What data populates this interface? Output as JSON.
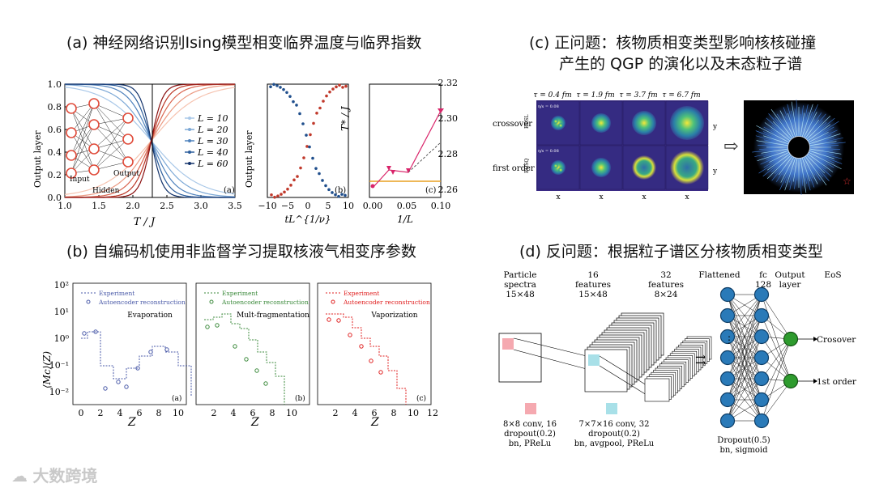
{
  "captions": {
    "a": "(a) 神经网络识别Ising模型相变临界温度与临界指数",
    "b": "(b) 自编码机使用非监督学习提取核液气相变序参数",
    "c1": "(c) 正问题：核物质相变类型影响核核碰撞",
    "c2": "产生的 QGP 的演化以及末态粒子谱",
    "d": "(d) 反问题：根据粒子谱区分核物质相变类型"
  },
  "panel_a": {
    "main": {
      "ylabel": "Output layer",
      "xlabel": "T / J",
      "xticks": [
        "1.0",
        "1.5",
        "2.0",
        "2.5",
        "3.0",
        "3.5"
      ],
      "yticks": [
        "0.0",
        "0.2",
        "0.4",
        "0.6",
        "0.8",
        "1.0"
      ],
      "legend": [
        "L = 10",
        "L = 20",
        "L = 30",
        "L = 40",
        "L = 60"
      ],
      "nn_labels": {
        "input": "Input",
        "hidden": "Hidden",
        "output": "Output"
      },
      "tag": "(a)"
    },
    "collapse": {
      "ylabel": "Output layer",
      "xlabel": "tL^{1/ν}",
      "xticks": [
        "−10",
        "−5",
        "0",
        "5",
        "10"
      ],
      "tag": "(b)"
    },
    "extrap": {
      "ylabel": "T* / J",
      "xlabel": "1/L",
      "xticks": [
        "0.00",
        "0.05",
        "0.10"
      ],
      "yticks": [
        "2.26",
        "2.28",
        "2.30",
        "2.32"
      ],
      "tag": "(c)"
    }
  },
  "panel_b": {
    "ylabel": "⟨Mc⟩(Z)",
    "xlabel": "Z",
    "yticks": [
      "10²",
      "10¹",
      "10⁰",
      "10⁻¹",
      "10⁻²"
    ],
    "xticks": [
      "0",
      "2",
      "4",
      "6",
      "8",
      "10",
      "12"
    ],
    "legend_exp": "Experiment",
    "legend_rec": "Autoencoder reconstruction",
    "subplots": [
      {
        "title": "Evaporation",
        "tag": "(a)",
        "color": "#4a5aa8",
        "xticks": [
          "0",
          "2",
          "4",
          "6",
          "8",
          "10"
        ]
      },
      {
        "title": "Mult-fragmentation",
        "tag": "(b)",
        "color": "#3b8a3b",
        "xticks": [
          "2",
          "4",
          "6",
          "8",
          "10"
        ]
      },
      {
        "title": "Vaporization",
        "tag": "(c)",
        "color": "#e02020",
        "xticks": [
          "2",
          "4",
          "6",
          "8",
          "10",
          "12"
        ]
      }
    ]
  },
  "panel_c": {
    "taus": [
      "τ = 0.4 fm",
      "τ = 1.9 fm",
      "τ = 3.7 fm",
      "τ = 6.7 fm"
    ],
    "rows": [
      "crossover",
      "first order"
    ],
    "eos": [
      "EOSL",
      "EOSQ"
    ],
    "eta": "η/s = 0.08",
    "xlab": "x",
    "ylab": "y",
    "arrow": "⇨"
  },
  "panel_d": {
    "headers": [
      {
        "l1": "Particle",
        "l2": "spectra",
        "l3": "15×48"
      },
      {
        "l1": "16",
        "l2": "features",
        "l3": "15×48"
      },
      {
        "l1": "32",
        "l2": "features",
        "l3": "8×24"
      }
    ],
    "flattened": "Flattened",
    "fc": {
      "l1": "fc",
      "l2": "128"
    },
    "output": {
      "l1": "Output",
      "l2": "layer"
    },
    "eos": "EoS",
    "classes": [
      "Crosover",
      "1st order"
    ],
    "conv1": {
      "l1": "8×8 conv, 16",
      "l2": "dropout(0.2)",
      "l3": "bn, PReLu"
    },
    "conv2": {
      "l1": "7×7×16 conv, 32",
      "l2": "dropout(0.2)",
      "l3": "bn, avgpool, PReLu"
    },
    "dense": {
      "l1": "Dropout(0.5)",
      "l2": "bn, sigmoid"
    }
  },
  "watermark": "大数跨境",
  "colors": {
    "red": "#c0392b",
    "blue": "#1f4e8c",
    "node": "#2a7ab8",
    "green": "#2e9b2e"
  }
}
